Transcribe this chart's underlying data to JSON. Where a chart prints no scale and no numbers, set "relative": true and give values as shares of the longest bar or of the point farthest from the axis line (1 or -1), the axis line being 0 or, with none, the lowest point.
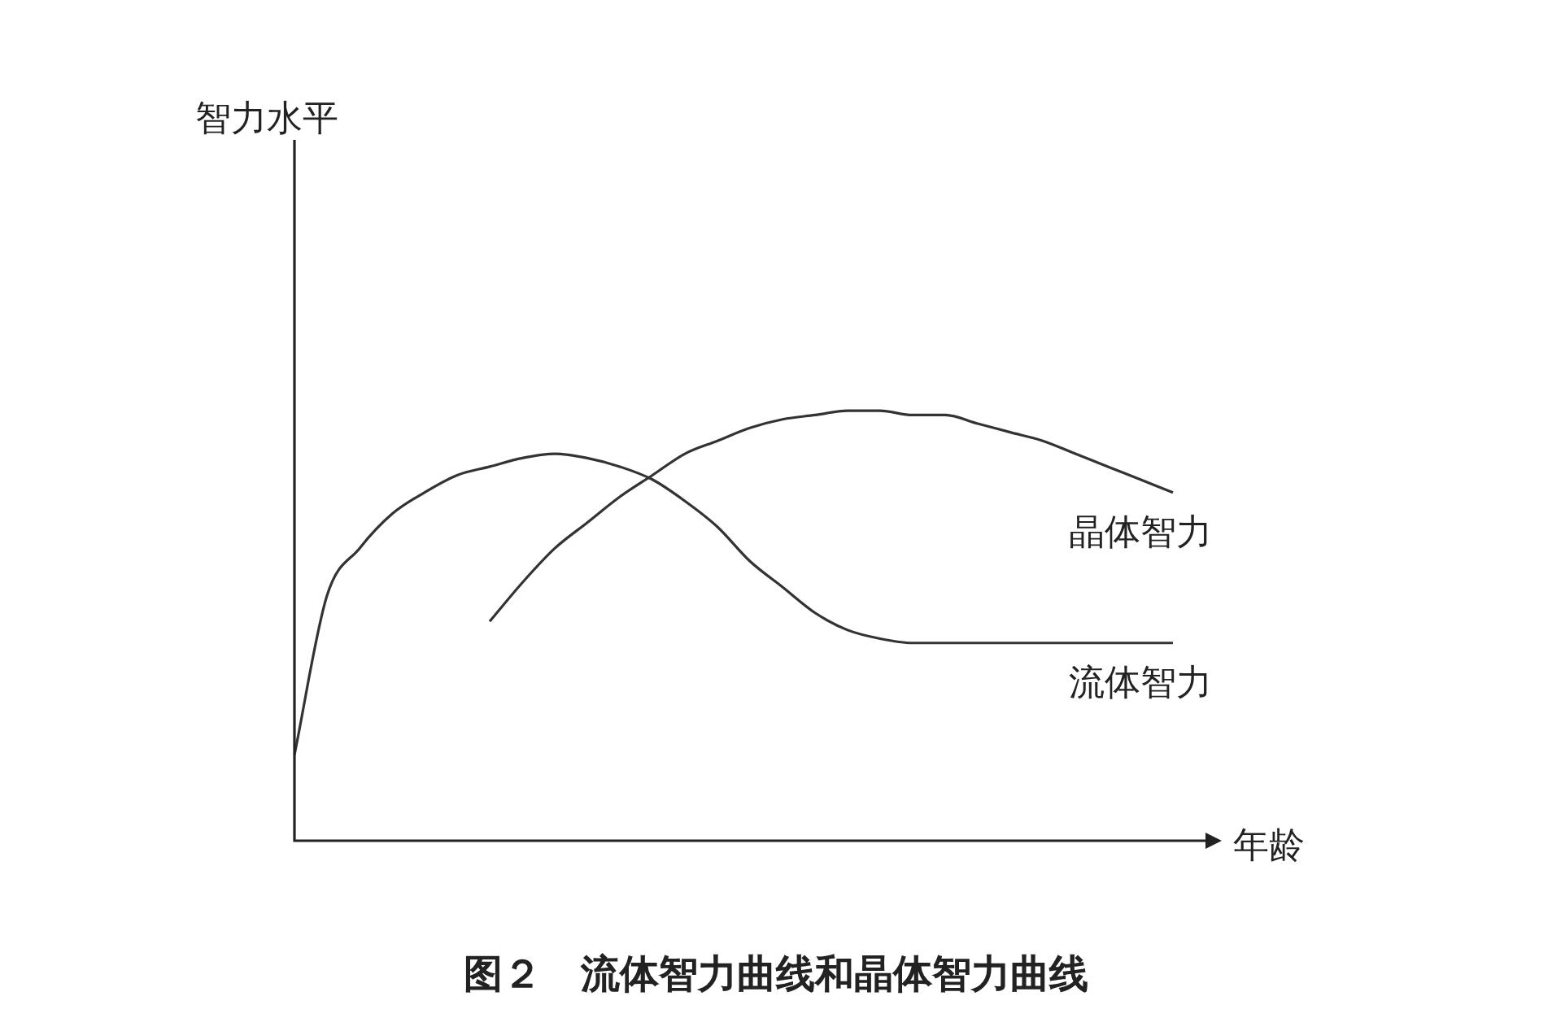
{
  "chart_data": {
    "type": "line",
    "relative": true,
    "title": "图２　流体智力曲线和晶体智力曲线",
    "xlabel": "年龄",
    "annotations": [
      "智力水平"
    ],
    "categories": [
      null,
      null,
      null,
      null,
      null,
      null,
      null,
      null,
      null,
      null,
      null,
      null,
      null,
      null,
      null,
      null,
      null,
      null,
      null,
      null,
      null,
      null,
      null,
      null,
      null,
      null,
      null,
      null
    ],
    "series": [
      {
        "name": "流体智力",
        "color": "#333333",
        "values": [
          0.2,
          0.57,
          0.68,
          0.76,
          0.81,
          0.85,
          0.87,
          0.89,
          0.9,
          0.89,
          0.87,
          0.84,
          0.79,
          0.73,
          0.65,
          0.59,
          0.53,
          0.49,
          0.47,
          0.46,
          0.46,
          0.46,
          0.46,
          0.46,
          0.46,
          0.46,
          0.46,
          0.46
        ]
      },
      {
        "name": "晶体智力",
        "color": "#333333",
        "values": [
          null,
          null,
          null,
          null,
          null,
          null,
          0.51,
          0.6,
          0.68,
          0.74,
          0.8,
          0.85,
          0.9,
          0.93,
          0.96,
          0.98,
          0.99,
          1,
          1,
          0.99,
          0.99,
          0.97,
          0.95,
          0.93,
          0.9,
          0.87,
          0.84,
          0.81
        ]
      }
    ],
    "legend": false,
    "marker": "none",
    "line_style": "solid"
  }
}
